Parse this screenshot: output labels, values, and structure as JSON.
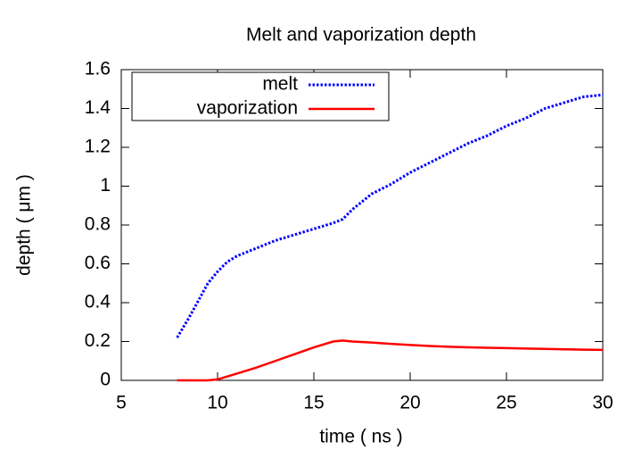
{
  "chart_data": {
    "type": "line",
    "title": "Melt and vaporization depth",
    "x_label": "time ( ns )",
    "y_label": "depth ( μm )",
    "x": [
      7.9,
      8.5,
      9,
      9.5,
      10,
      10.5,
      11,
      12,
      13,
      14,
      15,
      16,
      16.5,
      17,
      18,
      19,
      20,
      21,
      22,
      23,
      24,
      25,
      26,
      27,
      28,
      29,
      30
    ],
    "series": [
      {
        "name": "melt",
        "color": "#0000ff",
        "style": "dotted",
        "values": [
          0.22,
          0.32,
          0.41,
          0.5,
          0.56,
          0.61,
          0.64,
          0.68,
          0.72,
          0.75,
          0.78,
          0.81,
          0.83,
          0.88,
          0.96,
          1.01,
          1.07,
          1.12,
          1.17,
          1.22,
          1.26,
          1.31,
          1.35,
          1.4,
          1.43,
          1.46,
          1.47
        ]
      },
      {
        "name": "vaporization",
        "color": "#ff0000",
        "style": "solid",
        "values": [
          0,
          0,
          0,
          0,
          0.005,
          0.02,
          0.035,
          0.065,
          0.1,
          0.135,
          0.17,
          0.2,
          0.205,
          0.2,
          0.195,
          0.188,
          0.182,
          0.177,
          0.173,
          0.17,
          0.168,
          0.166,
          0.164,
          0.162,
          0.16,
          0.158,
          0.157
        ]
      }
    ],
    "xlim": [
      5,
      30
    ],
    "xticks": [
      5,
      10,
      15,
      20,
      25,
      30
    ],
    "ylim": [
      0,
      1.6
    ],
    "yticks": [
      0,
      0.2,
      0.4,
      0.6,
      0.8,
      1,
      1.2,
      1.4,
      1.6
    ],
    "grid": false,
    "legend": "top left"
  }
}
